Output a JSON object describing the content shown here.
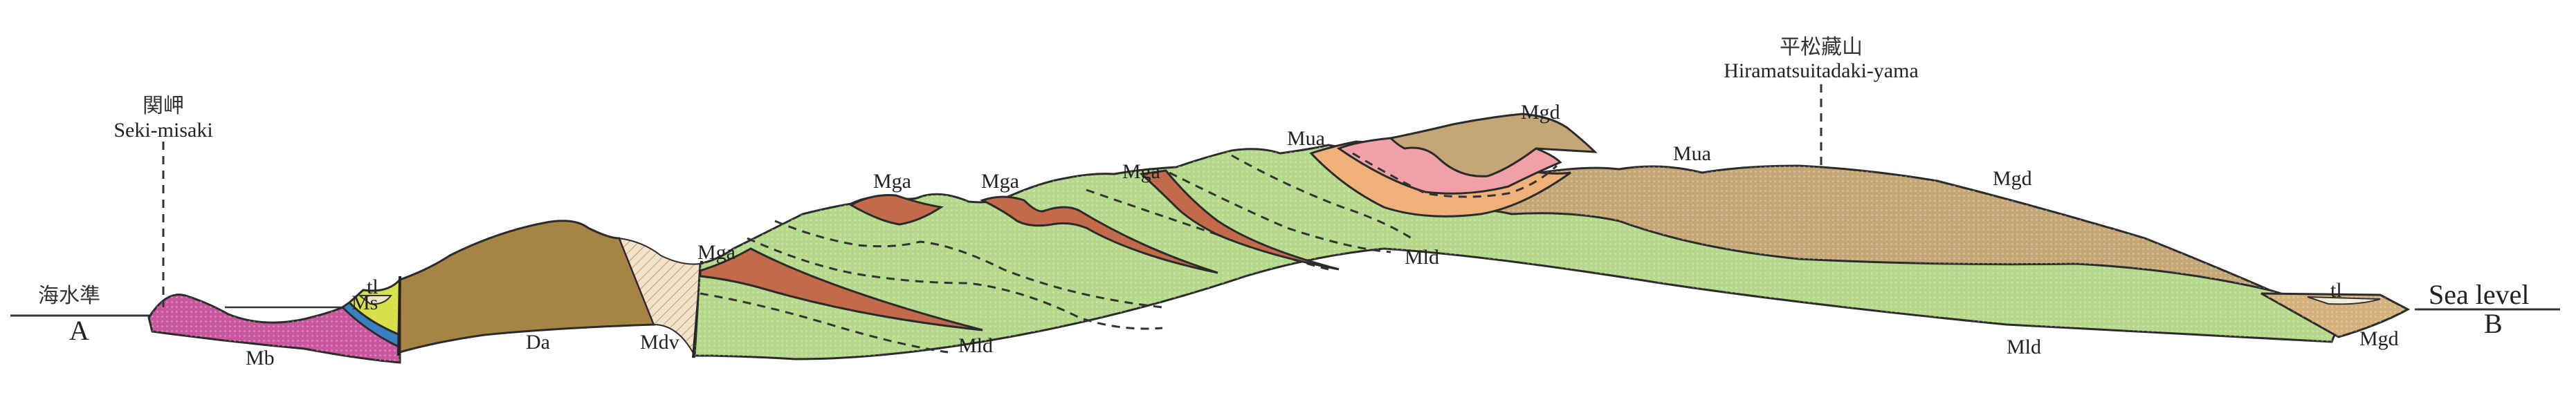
{
  "diagram": {
    "type": "geological cross-section",
    "endpoints": {
      "left": "A",
      "right": "B"
    },
    "sea_level": {
      "left_label": "海水準",
      "right_label": "Sea level"
    },
    "landmarks": [
      {
        "jp": "関岬",
        "en": "Seki-misaki"
      },
      {
        "jp": "平松藏山",
        "en": "Hiramatsuitadaki-yama"
      }
    ],
    "units": {
      "Mb": {
        "label": "Mb",
        "color": "#c8579f"
      },
      "Ms": {
        "label": "Ms",
        "color": "#3a7fc0"
      },
      "tl": {
        "label": "tl",
        "color": "#d8e04a"
      },
      "Da": {
        "label": "Da",
        "color": "#a58444"
      },
      "Mdv": {
        "label": "Mdv",
        "color": "#e9d4b5"
      },
      "Mga": {
        "label": "Mga",
        "color": "#c36a4a"
      },
      "Mld": {
        "label": "Mld",
        "color": "#b5d98a"
      },
      "Mua": {
        "label": "Mua",
        "color": "#f2a0a8"
      },
      "Mua_lower": {
        "color": "#f0b07a"
      },
      "Mgd": {
        "label": "Mgd",
        "color": "#c4a677"
      }
    },
    "labels": {
      "ms": "Ms",
      "tl_left": "tl",
      "mb": "Mb",
      "da": "Da",
      "mdv": "Mdv",
      "mga_1": "Mga",
      "mga_2": "Mga",
      "mga_3": "Mga",
      "mga_4": "Mga",
      "mua_1": "Mua",
      "mua_2": "Mua",
      "mgd_top": "Mgd",
      "mgd_right": "Mgd",
      "mld_1": "Mld",
      "mld_2": "Mld",
      "mld_3": "Mld",
      "tl_right": "tl",
      "mgd_coast": "Mgd"
    }
  }
}
